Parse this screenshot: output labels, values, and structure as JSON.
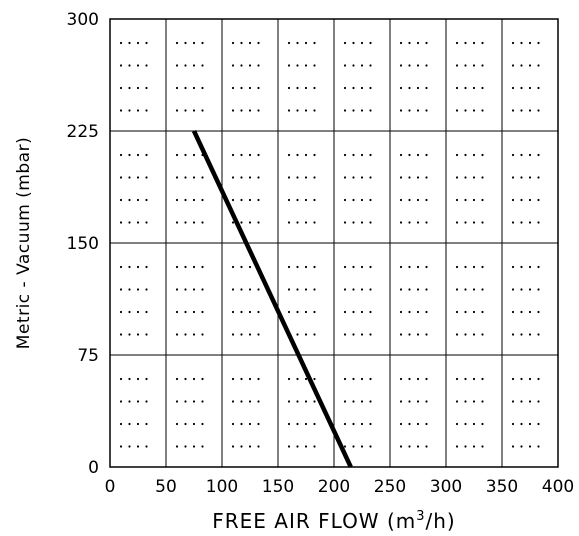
{
  "chart_data": {
    "type": "line",
    "title": "",
    "xlabel_main": "FREE AIR FLOW (m",
    "xlabel_sup": "3",
    "xlabel_tail": "/h)",
    "ylabel": "Metric - Vacuum (mbar)",
    "xlim": [
      0,
      400
    ],
    "ylim": [
      0,
      300
    ],
    "x_ticks": [
      "0",
      "50",
      "100",
      "150",
      "200",
      "250",
      "300",
      "350",
      "400"
    ],
    "y_ticks": [
      "0",
      "75",
      "150",
      "225",
      "300"
    ],
    "grid": true,
    "series": [
      {
        "x": [
          75,
          215
        ],
        "y": [
          225,
          0
        ],
        "color": "#000000"
      }
    ]
  }
}
